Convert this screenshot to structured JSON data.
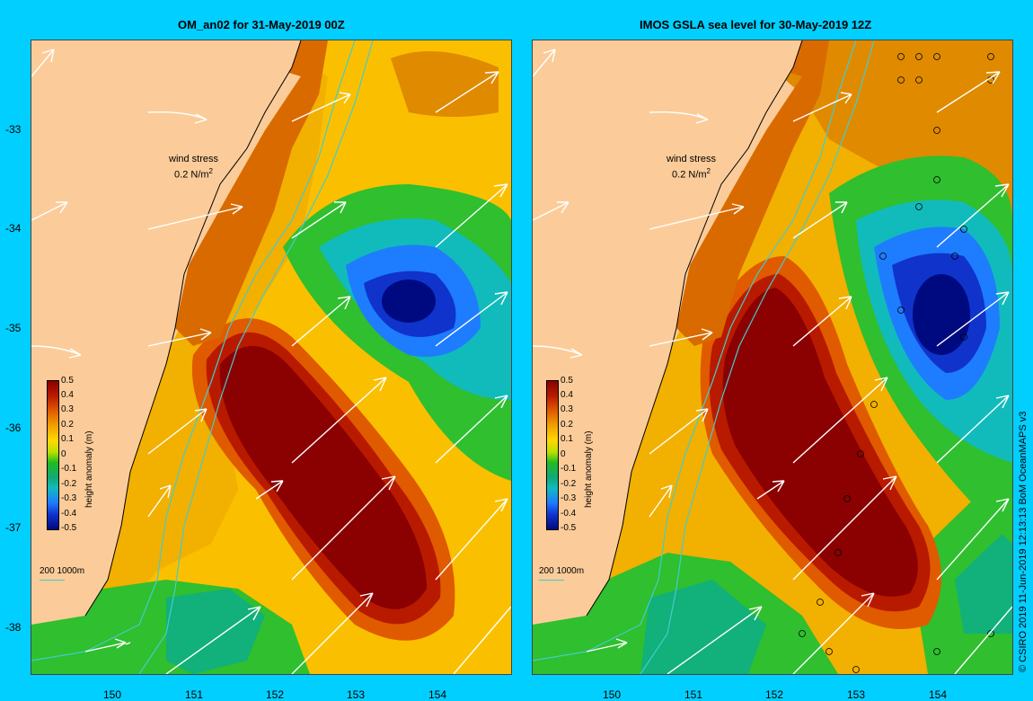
{
  "panels": [
    {
      "title": "OM_an02 for 31-May-2019 00Z"
    },
    {
      "title": "IMOS GSLA sea level  for 30-May-2019 12Z"
    }
  ],
  "axes": {
    "y_ticks": [
      "-33",
      "-34",
      "-35",
      "-36",
      "-37",
      "-38"
    ],
    "x_ticks": [
      "150",
      "151",
      "152",
      "153",
      "154"
    ]
  },
  "wind_legend": {
    "line1": "wind stress",
    "line2": "0.2 N/m",
    "sup": "2"
  },
  "colorbar": {
    "title": "height anomaly (m)",
    "labels": [
      "0.5",
      "0.4",
      "0.3",
      "0.2",
      "0.1",
      "0",
      "-0.1",
      "-0.2",
      "-0.3",
      "-0.4",
      "-0.5"
    ]
  },
  "depth_legend": "200  1000m",
  "credit": "© CSIRO 2019  11-Jun-2019 12:13:13 BoM OceanMAPS v3",
  "colors": {
    "background": "#00cfff",
    "land": "#fbcc99",
    "warm": "#8b0000",
    "cool": "#000a80",
    "isobath": "#44cccc"
  }
}
